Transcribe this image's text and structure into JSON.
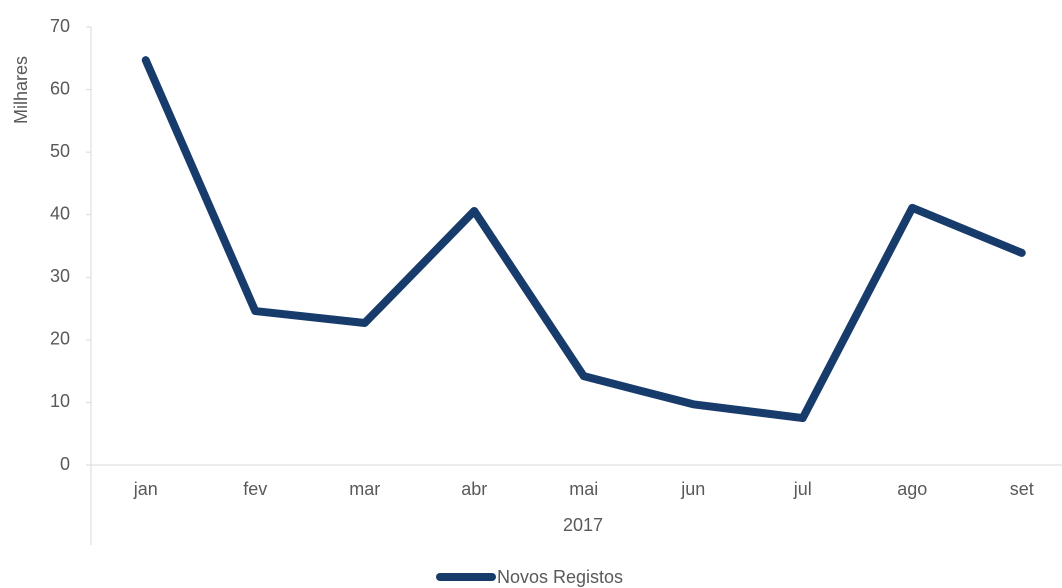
{
  "chart_data": {
    "type": "line",
    "y_label": "Milhares",
    "x_label": "2017",
    "categories": [
      "jan",
      "fev",
      "mar",
      "abr",
      "mai",
      "jun",
      "jul",
      "ago",
      "set"
    ],
    "series": [
      {
        "name": "Novos Registos",
        "color": "#173c6c",
        "values": [
          64.7,
          24.6,
          22.7,
          40.6,
          14.2,
          9.7,
          7.5,
          41.1,
          33.9
        ]
      }
    ],
    "ylim": [
      0,
      70
    ],
    "yticks": [
      0,
      10,
      20,
      30,
      40,
      50,
      60,
      70
    ],
    "grid": false,
    "legend": "bottom"
  }
}
